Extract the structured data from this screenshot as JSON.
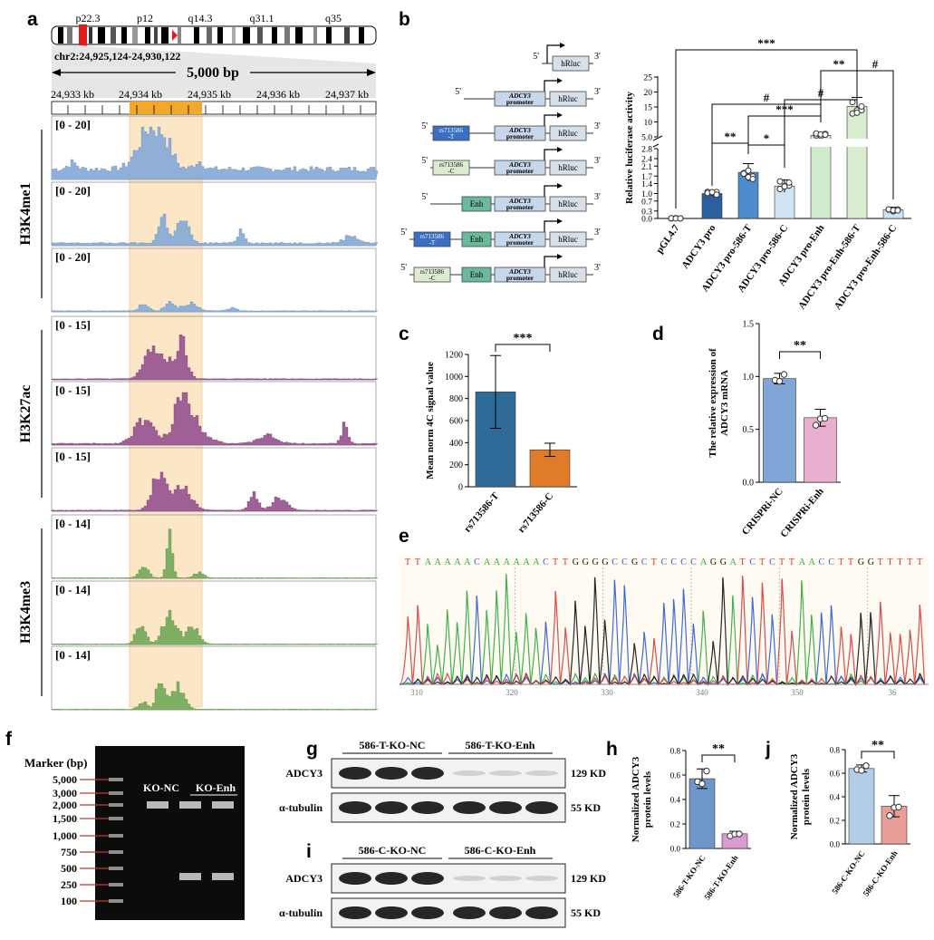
{
  "panel_labels": {
    "a": "a",
    "b": "b",
    "c": "c",
    "d": "d",
    "e": "e",
    "f": "f",
    "g": "g",
    "h": "h",
    "i": "i",
    "j": "j"
  },
  "panel_a": {
    "bands": [
      "p22.3",
      "p12",
      "q14.3",
      "q31.1",
      "q35"
    ],
    "coords": "chr2:24,925,124-24,930,122",
    "scale": "5,000 bp",
    "kb_ticks": [
      "24,933 kb",
      "24,934 kb",
      "24,935 kb",
      "24,936 kb",
      "24,937 kb"
    ],
    "groups": [
      {
        "name": "H3K4me1",
        "color": "#89acd6",
        "stroke": "#6f96c7",
        "ranges": [
          "[0 - 20]",
          "[0 - 20]",
          "[0 - 20]"
        ]
      },
      {
        "name": "H3K27ac",
        "color": "#9a5a92",
        "stroke": "#7e4377",
        "ranges": [
          "[0 - 15]",
          "[0 - 15]",
          "[0 - 15]"
        ]
      },
      {
        "name": "H3K4me3",
        "color": "#78ac5e",
        "stroke": "#5f9246",
        "ranges": [
          "[0 - 14]",
          "[0 - 14]",
          "[0 - 14]"
        ]
      }
    ],
    "highlight_color": "#fbe6c6",
    "bar_color": "#f2a92a"
  },
  "panel_b": {
    "constructs": [
      {
        "snp": "",
        "enh": false,
        "promoter": false
      },
      {
        "snp": "",
        "enh": false,
        "promoter": true
      },
      {
        "snp": "rs713586\n-T",
        "enh": false,
        "promoter": true
      },
      {
        "snp": "rs713586\n-C",
        "enh": false,
        "promoter": true
      },
      {
        "snp": "",
        "enh": true,
        "promoter": true
      },
      {
        "snp": "rs713586\n-T",
        "enh": true,
        "promoter": true
      },
      {
        "snp": "rs713586\n-C",
        "enh": true,
        "promoter": true
      }
    ],
    "five": "5'",
    "three": "3'",
    "hrluc": "hRluc",
    "promoter": "promoter",
    "adcy3": "ADCY3",
    "enh": "Enh",
    "snp_t_color": "#3a6fc4",
    "snp_c_color": "#dcebd2",
    "enh_color": "#6ab99a"
  },
  "chart_b": {
    "type": "bar",
    "ylabel": "Relative luciferase activity",
    "categories": [
      "pGL4.7",
      "ADCY3 pro",
      "ADCY3 pro-586-T",
      "ADCY3 pro-586-C",
      "ADCY3 pro-Enh",
      "ADCY3 pro-Enh-586-T",
      "ADCY3 pro-Enh-586-C"
    ],
    "values": [
      0.0,
      1.0,
      1.85,
      1.3,
      5.5,
      15.2,
      0.35
    ],
    "errors": [
      0.02,
      0.1,
      0.35,
      0.25,
      0.8,
      3.0,
      0.1
    ],
    "colors": [
      "#bfbfbf",
      "#2b5f9e",
      "#4f8ccd",
      "#cfe3f3",
      "#cfeacd",
      "#d8eecf",
      "#cfe3f3"
    ],
    "lower_ticks": [
      "0.0",
      "0.3",
      "0.7",
      "1.0",
      "1.4",
      "1.7",
      "2.1",
      "2.4",
      "2.8"
    ],
    "upper_ticks": [
      "5.0",
      "10",
      "15",
      "20",
      "25"
    ],
    "sig": [
      "**",
      "*",
      "***",
      "#",
      "***",
      "**",
      "#"
    ]
  },
  "chart_c": {
    "type": "bar",
    "ylabel": "Mean norm 4C signal value",
    "categories": [
      "rs713586-T",
      "rs713586-C"
    ],
    "values": [
      860,
      335
    ],
    "errors": [
      330,
      60
    ],
    "colors": [
      "#2e6b98",
      "#e07b2a"
    ],
    "ylim": [
      0,
      1200
    ],
    "ticks": [
      "0",
      "200",
      "400",
      "600",
      "800",
      "1000",
      "1200"
    ],
    "sig": "***"
  },
  "chart_d": {
    "type": "bar",
    "ylabel": "The relative expression of ADCY3 mRNA",
    "categories": [
      "CRISPRi-NC",
      "CRISPRi-Enh"
    ],
    "values": [
      0.98,
      0.61
    ],
    "errors": [
      0.05,
      0.08
    ],
    "colors": [
      "#7fa6d6",
      "#eaaed0"
    ],
    "ylim": [
      0,
      1.5
    ],
    "ticks": [
      "0.0",
      "0.5",
      "1.0",
      "1.5"
    ],
    "sig": "**"
  },
  "panel_e": {
    "sequence": "TTAAAAACAAAAAACTTGGGGCCGCTCCCCAGGATCTCTTAACCTTGGTTTTT",
    "axis": [
      "310",
      "320",
      "330",
      "340",
      "350",
      "36"
    ],
    "base_colors": {
      "A": "#2eaa3c",
      "C": "#2d5bd6",
      "G": "#111111",
      "T": "#d63a3a"
    }
  },
  "panel_f": {
    "title": "Marker (bp)",
    "markers": [
      "5,000",
      "3,000",
      "2,000",
      "1,500",
      "1,000",
      "750",
      "500",
      "250",
      "100"
    ],
    "lane1": "KO-NC",
    "lane2": "KO-Enh"
  },
  "panel_g": {
    "left": "586-T-KO-NC",
    "right": "586-T-KO-Enh",
    "row1": "ADCY3",
    "row2": "α-tubulin",
    "size1": "129 KD",
    "size2": "55 KD"
  },
  "panel_i": {
    "left": "586-C-KO-NC",
    "right": "586-C-KO-Enh",
    "row1": "ADCY3",
    "row2": "α-tubulin",
    "size1": "129 KD",
    "size2": "55 KD"
  },
  "chart_h": {
    "type": "bar",
    "ylabel": "Normalized ADCY3 protein levels",
    "categories": [
      "586-T-KO-NC",
      "586-T-KO-Enh"
    ],
    "values": [
      0.57,
      0.12
    ],
    "errors": [
      0.08,
      0.02
    ],
    "colors": [
      "#6f96c9",
      "#d99bd0"
    ],
    "ylim": [
      0,
      0.8
    ],
    "ticks": [
      "0.0",
      "0.2",
      "0.4",
      "0.6",
      "0.8"
    ],
    "sig": "**"
  },
  "chart_j": {
    "type": "bar",
    "ylabel": "Normalized ADCY3 protein levels",
    "categories": [
      "586-C-KO-NC",
      "586-C-KO-Enh"
    ],
    "values": [
      0.64,
      0.32
    ],
    "errors": [
      0.03,
      0.09
    ],
    "colors": [
      "#b3cde8",
      "#ea9e9a"
    ],
    "ylim": [
      0,
      0.8
    ],
    "ticks": [
      "0.0",
      "0.2",
      "0.4",
      "0.6",
      "0.8"
    ],
    "sig": "**"
  }
}
